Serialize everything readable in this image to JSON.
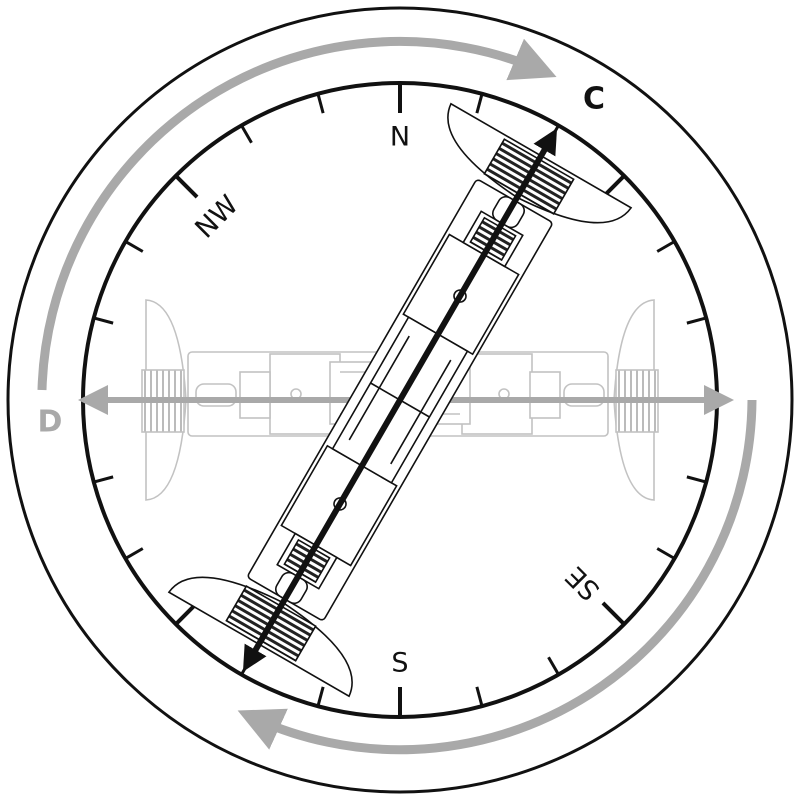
{
  "compass": {
    "north": "N",
    "northwest": "NW",
    "south": "S",
    "southeast": "SE"
  },
  "labels": {
    "current": "C",
    "desired": "D"
  },
  "colors": {
    "outline": "#111111",
    "highlight": "#111111",
    "ghost": "#b8b8b8",
    "rotation_arrow": "#a9a9a9",
    "background": "#ffffff"
  }
}
